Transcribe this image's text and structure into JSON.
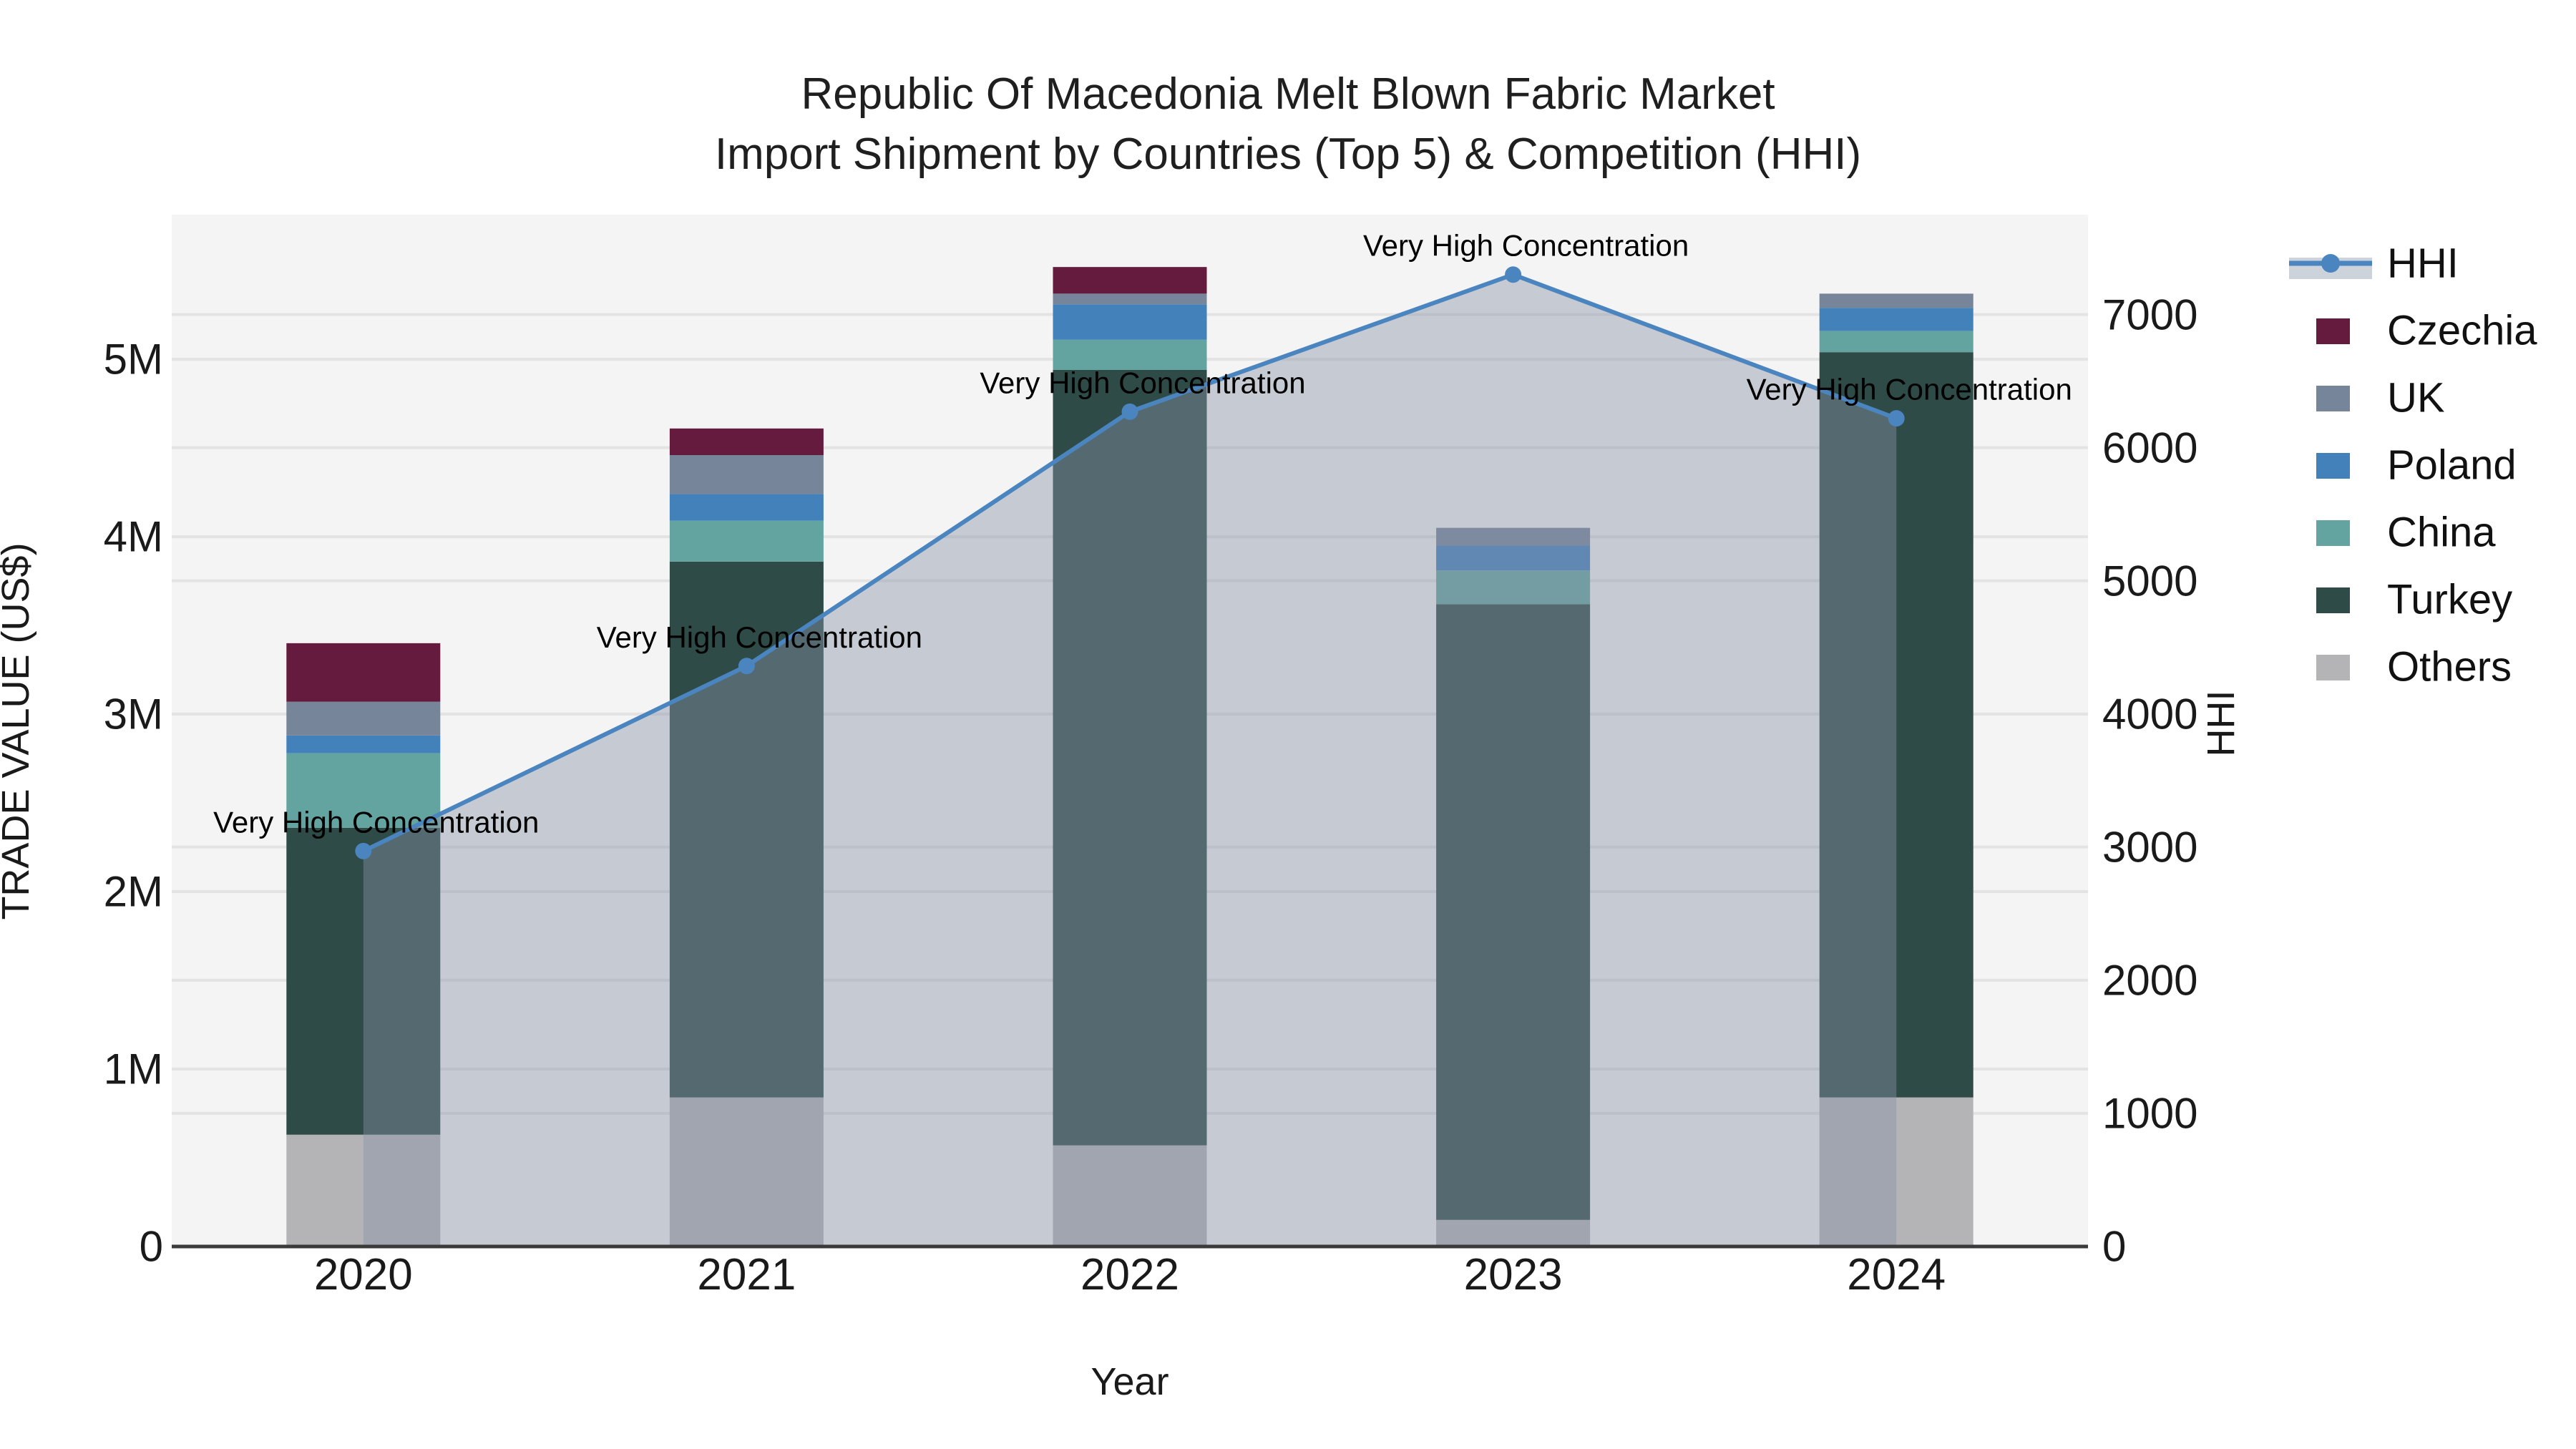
{
  "title": {
    "line1": "Republic Of Macedonia Melt Blown Fabric Market",
    "line2": "Import Shipment by Countries (Top 5) & Competition (HHI)"
  },
  "colors": {
    "background": "#ffffff",
    "plot_bg": "#f4f4f4",
    "grid": "#e3e3e3",
    "spine": "#3a3a3a",
    "hhi_line": "#4a85c0",
    "hhi_area": "rgba(137,146,166,0.43)",
    "legend_band": "#ccd3db",
    "czechia": "#651b3d",
    "uk": "#76859a",
    "poland": "#4381bb",
    "china": "#63a4a1",
    "turkey": "#2e4b47",
    "others": "#b4b4b6"
  },
  "legend": [
    {
      "label": "HHI",
      "type": "line",
      "color": "#4a85c0"
    },
    {
      "label": "Czechia",
      "type": "swatch",
      "color": "#651b3d"
    },
    {
      "label": "UK",
      "type": "swatch",
      "color": "#76859a"
    },
    {
      "label": "Poland",
      "type": "swatch",
      "color": "#4381bb"
    },
    {
      "label": "China",
      "type": "swatch",
      "color": "#63a4a1"
    },
    {
      "label": "Turkey",
      "type": "swatch",
      "color": "#2e4b47"
    },
    {
      "label": "Others",
      "type": "swatch",
      "color": "#b4b4b6"
    }
  ],
  "chart_data": {
    "type": "bar",
    "subtype": "stacked-bars-with-line",
    "categories": [
      "2020",
      "2021",
      "2022",
      "2023",
      "2024"
    ],
    "series": [
      {
        "name": "Others",
        "color": "#b4b4b6",
        "values": [
          630000,
          840000,
          570000,
          150000,
          840000
        ]
      },
      {
        "name": "Turkey",
        "color": "#2e4b47",
        "values": [
          1730000,
          3020000,
          4370000,
          3470000,
          4200000
        ]
      },
      {
        "name": "China",
        "color": "#63a4a1",
        "values": [
          420000,
          230000,
          170000,
          190000,
          120000
        ]
      },
      {
        "name": "Poland",
        "color": "#4381bb",
        "values": [
          100000,
          150000,
          200000,
          140000,
          130000
        ]
      },
      {
        "name": "UK",
        "color": "#76859a",
        "values": [
          190000,
          220000,
          60000,
          100000,
          80000
        ]
      },
      {
        "name": "Czechia",
        "color": "#651b3d",
        "values": [
          330000,
          150000,
          150000,
          0,
          0
        ]
      }
    ],
    "totals": [
      3400000,
      4610000,
      5520000,
      4050000,
      5370000
    ],
    "line_series": {
      "name": "HHI",
      "axis": "right",
      "color": "#4a85c0",
      "values": [
        2970,
        4360,
        6270,
        7300,
        6220
      ],
      "area_fill": true
    },
    "annotations": [
      {
        "x": "2020",
        "text": "Very High Concentration"
      },
      {
        "x": "2021",
        "text": "Very High Concentration"
      },
      {
        "x": "2022",
        "text": "Very High Concentration"
      },
      {
        "x": "2023",
        "text": "Very High Concentration"
      },
      {
        "x": "2024",
        "text": "Very High Concentration"
      }
    ],
    "title": "Republic Of Macedonia Melt Blown Fabric Market Import Shipment by Countries (Top 5) & Competition (HHI)",
    "xlabel": "Year",
    "ylabel_left": "TRADE VALUE (US$)",
    "ylabel_right": "HHI",
    "left_axis": {
      "ticks": [
        {
          "value": 0,
          "label": "0"
        },
        {
          "value": 1000000,
          "label": "1M"
        },
        {
          "value": 2000000,
          "label": "2M"
        },
        {
          "value": 3000000,
          "label": "3M"
        },
        {
          "value": 4000000,
          "label": "4M"
        },
        {
          "value": 5000000,
          "label": "5M"
        }
      ],
      "max": 5815000
    },
    "right_axis": {
      "ticks": [
        {
          "value": 0,
          "label": "0"
        },
        {
          "value": 1000,
          "label": "1000"
        },
        {
          "value": 2000,
          "label": "2000"
        },
        {
          "value": 3000,
          "label": "3000"
        },
        {
          "value": 4000,
          "label": "4000"
        },
        {
          "value": 5000,
          "label": "5000"
        },
        {
          "value": 6000,
          "label": "6000"
        },
        {
          "value": 7000,
          "label": "7000"
        }
      ],
      "max": 7750
    },
    "grid": true,
    "legend_position": "right"
  }
}
